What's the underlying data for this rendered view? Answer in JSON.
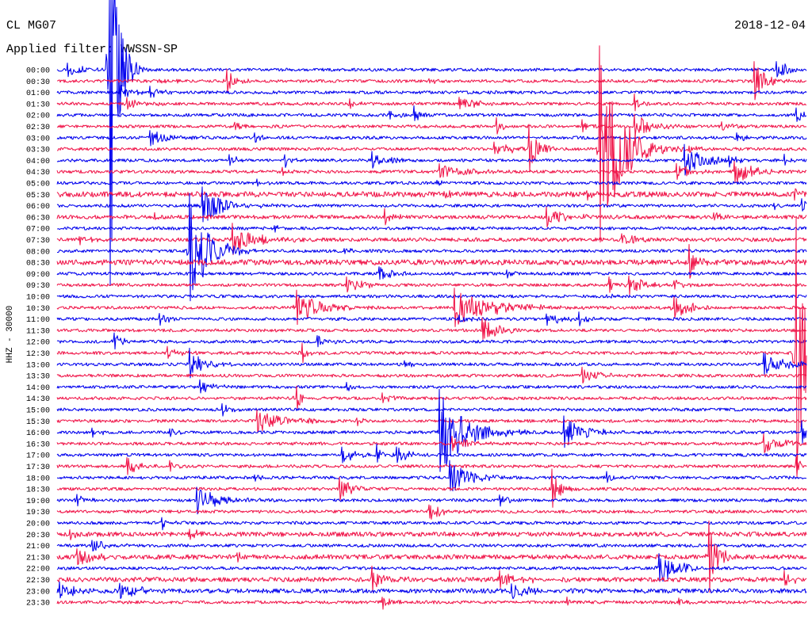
{
  "header": {
    "station": "CL MG07",
    "filter": "Applied filter: WWSSN-SP",
    "date": "2018-12-04"
  },
  "chart_data": {
    "type": "line",
    "title": "CL MG07",
    "ylabel": "HHZ - 30000",
    "row_minutes": 30,
    "colors": [
      "#0000ee",
      "#f0164a"
    ],
    "row_labels": [
      "00:00",
      "00:30",
      "01:00",
      "01:30",
      "02:00",
      "02:30",
      "03:00",
      "03:30",
      "04:00",
      "04:30",
      "05:00",
      "05:30",
      "06:00",
      "06:30",
      "07:00",
      "07:30",
      "08:00",
      "08:30",
      "09:00",
      "09:30",
      "10:00",
      "10:30",
      "11:00",
      "11:30",
      "12:00",
      "12:30",
      "13:00",
      "13:30",
      "14:00",
      "14:30",
      "15:00",
      "15:30",
      "16:00",
      "16:30",
      "17:00",
      "17:30",
      "18:00",
      "18:30",
      "19:00",
      "19:30",
      "20:00",
      "20:30",
      "21:00",
      "21:30",
      "22:00",
      "22:30",
      "23:00",
      "23:30"
    ],
    "noise_counts": 4000,
    "noisy_rows": {
      "05:30": 7000,
      "08:30": 7000,
      "21:30": 6000,
      "22:30": 6000,
      "23:00": 6000,
      "20:30": 6000,
      "06:30": 5000,
      "07:30": 5000
    },
    "events": [
      {
        "row": "00:00",
        "minute": 0.4,
        "amplitude": 17000,
        "decay": 0.6
      },
      {
        "row": "00:00",
        "minute": 2.1,
        "amplitude": 630000,
        "decay": 0.3
      },
      {
        "row": "00:00",
        "minute": 28.8,
        "amplitude": 25000,
        "decay": 0.5
      },
      {
        "row": "00:30",
        "minute": 4.1,
        "amplitude": 8000,
        "decay": 0.5
      },
      {
        "row": "00:30",
        "minute": 6.8,
        "amplitude": 31000,
        "decay": 0.3
      },
      {
        "row": "00:30",
        "minute": 14.9,
        "amplitude": 6000,
        "decay": 0.4
      },
      {
        "row": "00:30",
        "minute": 27.9,
        "amplitude": 52000,
        "decay": 0.4
      },
      {
        "row": "01:00",
        "minute": 2.5,
        "amplitude": 17000,
        "decay": 0.6
      },
      {
        "row": "01:00",
        "minute": 3.7,
        "amplitude": 13000,
        "decay": 0.4
      },
      {
        "row": "01:30",
        "minute": 2.8,
        "amplitude": 13000,
        "decay": 0.6
      },
      {
        "row": "01:30",
        "minute": 11.7,
        "amplitude": 17000,
        "decay": 0.2
      },
      {
        "row": "01:30",
        "minute": 16.1,
        "amplitude": 17000,
        "decay": 0.6
      },
      {
        "row": "01:30",
        "minute": 23.1,
        "amplitude": 25000,
        "decay": 0.2
      },
      {
        "row": "02:00",
        "minute": 13.3,
        "amplitude": 10000,
        "decay": 0.4
      },
      {
        "row": "02:00",
        "minute": 14.3,
        "amplitude": 21000,
        "decay": 0.2
      },
      {
        "row": "02:00",
        "minute": 29.6,
        "amplitude": 21000,
        "decay": 0.3
      },
      {
        "row": "02:30",
        "minute": 7.1,
        "amplitude": 10000,
        "decay": 0.4
      },
      {
        "row": "02:30",
        "minute": 17.6,
        "amplitude": 21000,
        "decay": 0.2
      },
      {
        "row": "02:30",
        "minute": 21.0,
        "amplitude": 17000,
        "decay": 0.3
      },
      {
        "row": "02:30",
        "minute": 23.1,
        "amplitude": 31000,
        "decay": 0.7
      },
      {
        "row": "02:30",
        "minute": 26.6,
        "amplitude": 10000,
        "decay": 0.4
      },
      {
        "row": "03:00",
        "minute": 3.7,
        "amplitude": 21000,
        "decay": 0.6
      },
      {
        "row": "03:00",
        "minute": 7.9,
        "amplitude": 10000,
        "decay": 0.3
      },
      {
        "row": "03:00",
        "minute": 27.2,
        "amplitude": 13000,
        "decay": 0.3
      },
      {
        "row": "03:30",
        "minute": 17.5,
        "amplitude": 17000,
        "decay": 0.8
      },
      {
        "row": "03:30",
        "minute": 18.9,
        "amplitude": 62000,
        "decay": 0.4
      },
      {
        "row": "03:30",
        "minute": 21.7,
        "amplitude": 270000,
        "decay": 0.8
      },
      {
        "row": "03:30",
        "minute": 25.3,
        "amplitude": 10000,
        "decay": 0.4
      },
      {
        "row": "04:00",
        "minute": 6.9,
        "amplitude": 13000,
        "decay": 0.4
      },
      {
        "row": "04:00",
        "minute": 9.1,
        "amplitude": 17000,
        "decay": 0.2
      },
      {
        "row": "04:00",
        "minute": 12.6,
        "amplitude": 21000,
        "decay": 0.6
      },
      {
        "row": "04:00",
        "minute": 25.1,
        "amplitude": 42000,
        "decay": 0.8
      },
      {
        "row": "04:00",
        "minute": 26.9,
        "amplitude": 13000,
        "decay": 0.3
      },
      {
        "row": "04:00",
        "minute": 29.1,
        "amplitude": 17000,
        "decay": 0.2
      },
      {
        "row": "04:30",
        "minute": 9.0,
        "amplitude": 8000,
        "decay": 0.3
      },
      {
        "row": "04:30",
        "minute": 15.3,
        "amplitude": 21000,
        "decay": 1.0
      },
      {
        "row": "04:30",
        "minute": 24.8,
        "amplitude": 25000,
        "decay": 0.6
      },
      {
        "row": "04:30",
        "minute": 27.1,
        "amplitude": 31000,
        "decay": 0.7
      },
      {
        "row": "05:00",
        "minute": 8.0,
        "amplitude": 8000,
        "decay": 0.4
      },
      {
        "row": "05:00",
        "minute": 15.2,
        "amplitude": 8000,
        "decay": 0.3
      },
      {
        "row": "05:30",
        "minute": 15.5,
        "amplitude": 10000,
        "decay": 0.3
      },
      {
        "row": "05:30",
        "minute": 21.2,
        "amplitude": 10000,
        "decay": 0.3
      },
      {
        "row": "05:30",
        "minute": 29.5,
        "amplitude": 13000,
        "decay": 0.3
      },
      {
        "row": "06:00",
        "minute": 5.8,
        "amplitude": 52000,
        "decay": 0.8
      },
      {
        "row": "06:00",
        "minute": 28.7,
        "amplitude": 10000,
        "decay": 0.3
      },
      {
        "row": "06:00",
        "minute": 29.8,
        "amplitude": 17000,
        "decay": 0.2
      },
      {
        "row": "06:30",
        "minute": 3.9,
        "amplitude": 13000,
        "decay": 0.3
      },
      {
        "row": "06:30",
        "minute": 13.1,
        "amplitude": 21000,
        "decay": 0.3
      },
      {
        "row": "06:30",
        "minute": 19.6,
        "amplitude": 25000,
        "decay": 0.7
      },
      {
        "row": "06:30",
        "minute": 26.3,
        "amplitude": 10000,
        "decay": 0.4
      },
      {
        "row": "07:00",
        "minute": 8.7,
        "amplitude": 8000,
        "decay": 0.3
      },
      {
        "row": "07:30",
        "minute": 0.9,
        "amplitude": 10000,
        "decay": 0.4
      },
      {
        "row": "07:30",
        "minute": 7.0,
        "amplitude": 42000,
        "decay": 0.8
      },
      {
        "row": "07:30",
        "minute": 22.6,
        "amplitude": 13000,
        "decay": 0.6
      },
      {
        "row": "08:00",
        "minute": 5.3,
        "amplitude": 150000,
        "decay": 0.7
      },
      {
        "row": "08:00",
        "minute": 11.5,
        "amplitude": 8000,
        "decay": 0.4
      },
      {
        "row": "08:30",
        "minute": 25.3,
        "amplitude": 42000,
        "decay": 0.3
      },
      {
        "row": "09:00",
        "minute": 12.9,
        "amplitude": 21000,
        "decay": 0.6
      },
      {
        "row": "09:00",
        "minute": 18.0,
        "amplitude": 10000,
        "decay": 0.3
      },
      {
        "row": "09:30",
        "minute": 11.6,
        "amplitude": 21000,
        "decay": 0.6
      },
      {
        "row": "09:30",
        "minute": 22.1,
        "amplitude": 25000,
        "decay": 0.2
      },
      {
        "row": "09:30",
        "minute": 22.9,
        "amplitude": 25000,
        "decay": 0.7
      },
      {
        "row": "09:30",
        "minute": 24.7,
        "amplitude": 13000,
        "decay": 0.3
      },
      {
        "row": "10:00",
        "minute": 22.0,
        "amplitude": 6000,
        "decay": 0.3
      },
      {
        "row": "10:30",
        "minute": 9.6,
        "amplitude": 46000,
        "decay": 0.9
      },
      {
        "row": "10:30",
        "minute": 15.9,
        "amplitude": 52000,
        "decay": 1.4
      },
      {
        "row": "10:30",
        "minute": 24.7,
        "amplitude": 31000,
        "decay": 0.6
      },
      {
        "row": "11:00",
        "minute": 4.1,
        "amplitude": 17000,
        "decay": 0.3
      },
      {
        "row": "11:00",
        "minute": 16.1,
        "amplitude": 10000,
        "decay": 0.4
      },
      {
        "row": "11:00",
        "minute": 19.6,
        "amplitude": 17000,
        "decay": 0.6
      },
      {
        "row": "11:00",
        "minute": 20.9,
        "amplitude": 21000,
        "decay": 0.3
      },
      {
        "row": "11:30",
        "minute": 17.0,
        "amplitude": 31000,
        "decay": 0.7
      },
      {
        "row": "12:00",
        "minute": 2.3,
        "amplitude": 21000,
        "decay": 0.3
      },
      {
        "row": "12:00",
        "minute": 10.4,
        "amplitude": 17000,
        "decay": 0.4
      },
      {
        "row": "12:30",
        "minute": 4.4,
        "amplitude": 15000,
        "decay": 0.5
      },
      {
        "row": "12:30",
        "minute": 9.8,
        "amplitude": 25000,
        "decay": 0.3
      },
      {
        "row": "12:30",
        "minute": 29.6,
        "amplitude": 360000,
        "decay": 0.4
      },
      {
        "row": "13:00",
        "minute": 5.3,
        "amplitude": 42000,
        "decay": 0.5
      },
      {
        "row": "13:00",
        "minute": 13.9,
        "amplitude": 10000,
        "decay": 0.3
      },
      {
        "row": "13:00",
        "minute": 28.3,
        "amplitude": 31000,
        "decay": 0.8
      },
      {
        "row": "13:30",
        "minute": 21.0,
        "amplitude": 25000,
        "decay": 0.6
      },
      {
        "row": "14:00",
        "minute": 5.7,
        "amplitude": 17000,
        "decay": 0.5
      },
      {
        "row": "14:00",
        "minute": 11.6,
        "amplitude": 13000,
        "decay": 0.2
      },
      {
        "row": "14:30",
        "minute": 9.6,
        "amplitude": 31000,
        "decay": 0.3
      },
      {
        "row": "14:30",
        "minute": 13.0,
        "amplitude": 13000,
        "decay": 0.5
      },
      {
        "row": "15:00",
        "minute": 6.6,
        "amplitude": 17000,
        "decay": 0.3
      },
      {
        "row": "15:30",
        "minute": 8.0,
        "amplitude": 31000,
        "decay": 1.0
      },
      {
        "row": "15:30",
        "minute": 12.0,
        "amplitude": 10000,
        "decay": 0.4
      },
      {
        "row": "16:00",
        "minute": 1.4,
        "amplitude": 13000,
        "decay": 0.3
      },
      {
        "row": "16:00",
        "minute": 4.5,
        "amplitude": 10000,
        "decay": 0.3
      },
      {
        "row": "16:00",
        "minute": 15.3,
        "amplitude": 115000,
        "decay": 1.0
      },
      {
        "row": "16:00",
        "minute": 20.3,
        "amplitude": 42000,
        "decay": 0.8
      },
      {
        "row": "16:00",
        "minute": 29.8,
        "amplitude": 31000,
        "decay": 0.3
      },
      {
        "row": "16:30",
        "minute": 15.8,
        "amplitude": 17000,
        "decay": 0.6
      },
      {
        "row": "16:30",
        "minute": 16.4,
        "amplitude": 13000,
        "decay": 0.4
      },
      {
        "row": "16:30",
        "minute": 28.3,
        "amplitude": 25000,
        "decay": 0.7
      },
      {
        "row": "17:00",
        "minute": 11.4,
        "amplitude": 21000,
        "decay": 0.5
      },
      {
        "row": "17:00",
        "minute": 12.8,
        "amplitude": 25000,
        "decay": 0.2
      },
      {
        "row": "17:00",
        "minute": 13.6,
        "amplitude": 21000,
        "decay": 0.5
      },
      {
        "row": "17:30",
        "minute": 2.8,
        "amplitude": 21000,
        "decay": 0.5
      },
      {
        "row": "17:30",
        "minute": 4.5,
        "amplitude": 13000,
        "decay": 0.3
      },
      {
        "row": "17:30",
        "minute": 29.6,
        "amplitude": 21000,
        "decay": 0.3
      },
      {
        "row": "18:00",
        "minute": 7.9,
        "amplitude": 10000,
        "decay": 0.2
      },
      {
        "row": "18:00",
        "minute": 15.7,
        "amplitude": 42000,
        "decay": 0.8
      },
      {
        "row": "18:00",
        "minute": 22.0,
        "amplitude": 17000,
        "decay": 0.2
      },
      {
        "row": "18:30",
        "minute": 11.3,
        "amplitude": 31000,
        "decay": 0.5
      },
      {
        "row": "18:30",
        "minute": 19.8,
        "amplitude": 52000,
        "decay": 0.3
      },
      {
        "row": "19:00",
        "minute": 0.8,
        "amplitude": 17000,
        "decay": 0.4
      },
      {
        "row": "19:00",
        "minute": 5.6,
        "amplitude": 38000,
        "decay": 0.8
      },
      {
        "row": "19:00",
        "minute": 17.7,
        "amplitude": 17000,
        "decay": 0.3
      },
      {
        "row": "19:30",
        "minute": 14.9,
        "amplitude": 21000,
        "decay": 0.5
      },
      {
        "row": "20:00",
        "minute": 4.2,
        "amplitude": 17000,
        "decay": 0.3
      },
      {
        "row": "20:30",
        "minute": 0.5,
        "amplitude": 13000,
        "decay": 0.4
      },
      {
        "row": "20:30",
        "minute": 5.3,
        "amplitude": 13000,
        "decay": 0.4
      },
      {
        "row": "21:00",
        "minute": 1.4,
        "amplitude": 17000,
        "decay": 0.6
      },
      {
        "row": "21:30",
        "minute": 0.8,
        "amplitude": 21000,
        "decay": 0.7
      },
      {
        "row": "21:30",
        "minute": 7.2,
        "amplitude": 10000,
        "decay": 0.4
      },
      {
        "row": "21:30",
        "minute": 26.1,
        "amplitude": 100000,
        "decay": 0.3
      },
      {
        "row": "22:00",
        "minute": 24.1,
        "amplitude": 42000,
        "decay": 0.7
      },
      {
        "row": "22:30",
        "minute": 12.6,
        "amplitude": 31000,
        "decay": 0.5
      },
      {
        "row": "22:30",
        "minute": 17.7,
        "amplitude": 21000,
        "decay": 0.8
      },
      {
        "row": "22:30",
        "minute": 29.1,
        "amplitude": 21000,
        "decay": 0.4
      },
      {
        "row": "23:00",
        "minute": 0.1,
        "amplitude": 21000,
        "decay": 0.6
      },
      {
        "row": "23:00",
        "minute": 2.5,
        "amplitude": 25000,
        "decay": 0.6
      },
      {
        "row": "23:00",
        "minute": 18.2,
        "amplitude": 21000,
        "decay": 0.6
      },
      {
        "row": "23:30",
        "minute": 13.0,
        "amplitude": 17000,
        "decay": 0.5
      },
      {
        "row": "23:30",
        "minute": 20.4,
        "amplitude": 13000,
        "decay": 0.3
      },
      {
        "row": "23:30",
        "minute": 24.9,
        "amplitude": 10000,
        "decay": 0.3
      }
    ]
  }
}
